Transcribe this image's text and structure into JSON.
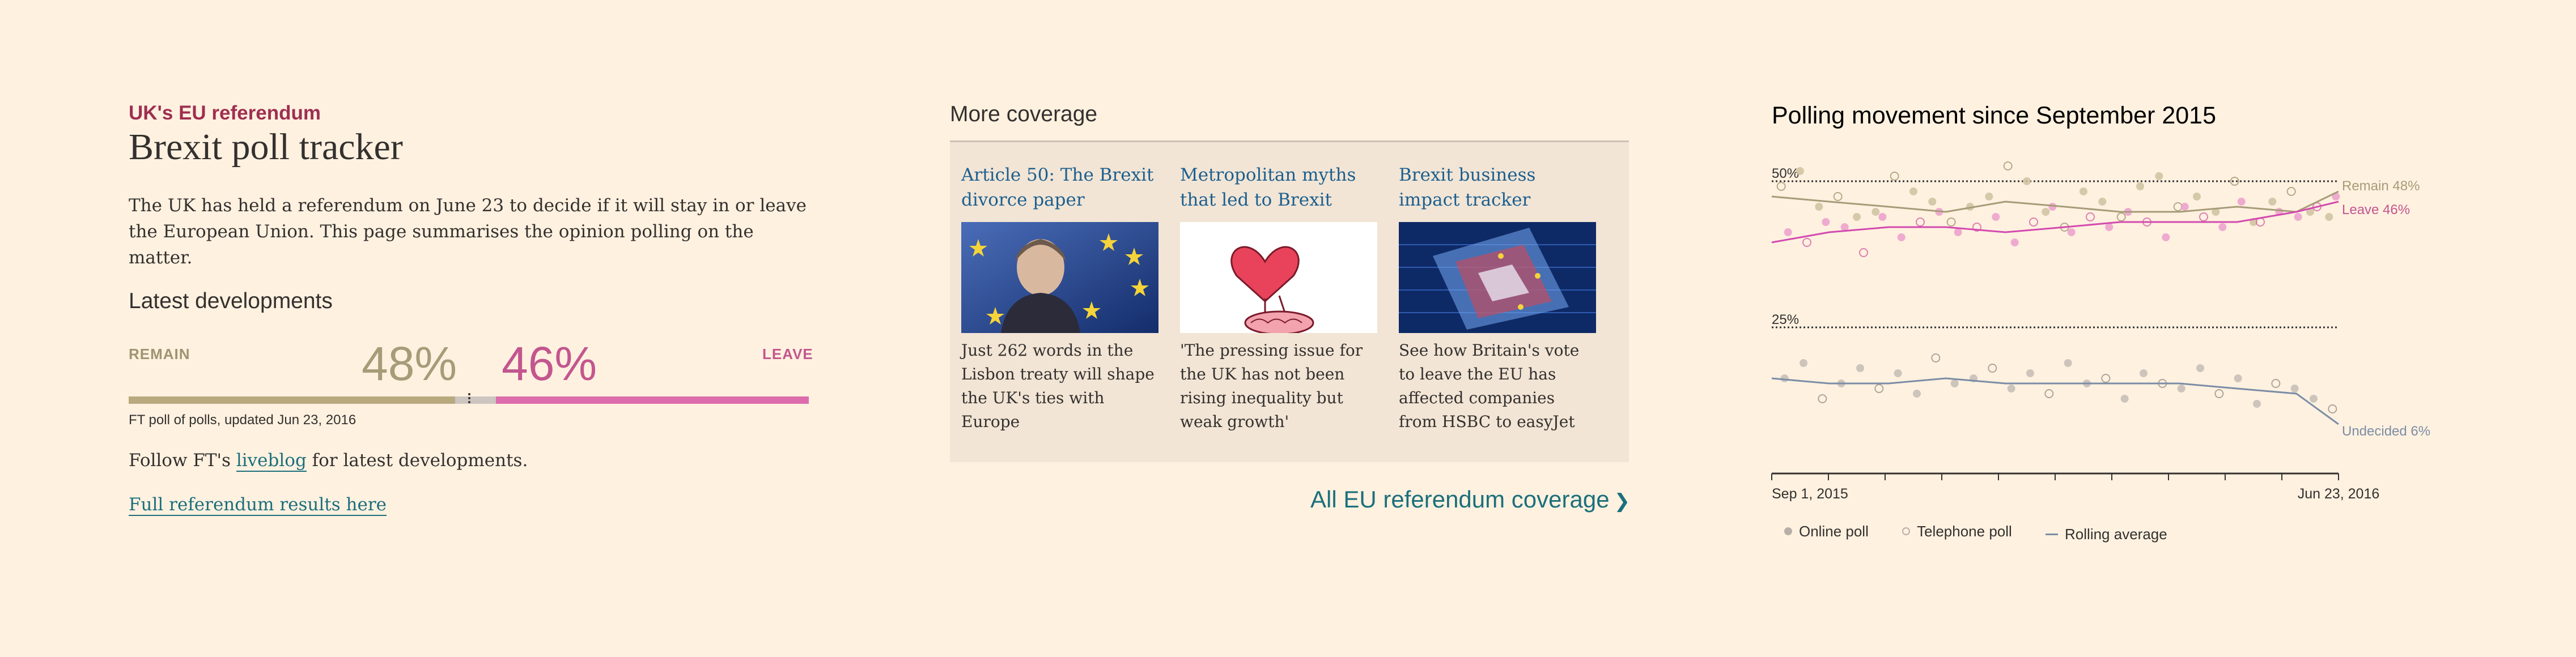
{
  "header": {
    "kicker": "UK's EU referendum",
    "title": "Brexit poll tracker",
    "intro": "The UK has held a referendum on June 23 to decide if it will stay in or leave the European Union. This page summarises the opinion polling on the matter."
  },
  "latest": {
    "heading": "Latest developments",
    "remain_label": "REMAIN",
    "leave_label": "LEAVE",
    "remain_pct_text": "48%",
    "leave_pct_text": "46%",
    "remain_value": 48,
    "leave_value": 46,
    "undecided_value": 6,
    "caption": "FT poll of polls, updated Jun 23, 2016",
    "follow_prefix": "Follow FT's ",
    "follow_link": "liveblog",
    "follow_suffix": " for latest developments.",
    "results_link": "Full referendum results here"
  },
  "coverage": {
    "heading": "More coverage",
    "cards": [
      {
        "title": "Article 50: The Brexit divorce paper",
        "text": "Just 262 words in the Lisbon treaty will shape the UK's ties with Europe",
        "image": "theresa-may-eu-flag-photo"
      },
      {
        "title": "Metropolitan myths that led to Brexit",
        "text": "'The pressing issue for the UK has not been rising inequality but weak growth'",
        "image": "heart-and-brain-illustration"
      },
      {
        "title": "Brexit business impact tracker",
        "text": "See how Britain's vote to leave the EU has affected companies from HSBC to easyJet",
        "image": "eu-flag-market-data-photo"
      }
    ],
    "all_link": "All EU referendum coverage",
    "chevron": "❯"
  },
  "colors": {
    "remain": "#b9a97f",
    "leave": "#dc6cac",
    "undecided": "#7b8da6",
    "link": "#1b6f7c",
    "kicker": "#9e2f50"
  },
  "chart_data": {
    "type": "scatter",
    "title": "Polling movement since September 2015",
    "x_labels": {
      "start": "Sep 1, 2015",
      "end": "Jun 23, 2016"
    },
    "x_range": [
      "2015-09-01",
      "2016-06-23"
    ],
    "reference_lines": [
      {
        "label": "50%",
        "value": 50
      },
      {
        "label": "25%",
        "value": 25
      }
    ],
    "legend": [
      {
        "label": "Online poll",
        "icon": "filled-circle-icon"
      },
      {
        "label": "Telephone poll",
        "icon": "hollow-circle-icon"
      },
      {
        "label": "Rolling average",
        "icon": "line-icon"
      }
    ],
    "end_labels": {
      "remain": "Remain 48%",
      "leave": "Leave 46%",
      "undecided": "Undecided 6%"
    },
    "series": [
      {
        "name": "Remain",
        "x": [
          "2015-09-01",
          "2015-10-01",
          "2015-11-01",
          "2015-12-01",
          "2016-01-01",
          "2016-02-01",
          "2016-03-01",
          "2016-04-01",
          "2016-05-01",
          "2016-06-01",
          "2016-06-23"
        ],
        "values": [
          47,
          46,
          45,
          44,
          46,
          45,
          44,
          44,
          45,
          44,
          48
        ]
      },
      {
        "name": "Leave",
        "x": [
          "2015-09-01",
          "2015-10-01",
          "2015-11-01",
          "2015-12-01",
          "2016-01-01",
          "2016-02-01",
          "2016-03-01",
          "2016-04-01",
          "2016-05-01",
          "2016-06-01",
          "2016-06-23"
        ],
        "values": [
          38,
          40,
          41,
          41,
          40,
          41,
          42,
          42,
          42,
          44,
          46
        ]
      },
      {
        "name": "Undecided",
        "x": [
          "2015-09-01",
          "2015-10-01",
          "2015-11-01",
          "2015-12-01",
          "2016-01-01",
          "2016-02-01",
          "2016-03-01",
          "2016-04-01",
          "2016-05-01",
          "2016-06-01",
          "2016-06-23"
        ],
        "values": [
          15,
          14,
          14,
          15,
          14,
          14,
          14,
          14,
          13,
          12,
          6
        ]
      }
    ],
    "polls": {
      "remain": [
        49,
        52,
        45,
        47,
        43,
        44,
        51,
        48,
        46,
        42,
        45,
        47,
        53,
        50,
        44,
        41,
        48,
        46,
        43,
        49,
        51,
        45,
        47,
        44,
        50,
        42,
        46,
        48,
        44,
        43
      ],
      "leave": [
        40,
        38,
        42,
        41,
        36,
        43,
        39,
        42,
        44,
        40,
        41,
        43,
        38,
        42,
        45,
        40,
        43,
        41,
        44,
        42,
        39,
        45,
        43,
        41,
        46,
        42,
        44,
        43,
        45,
        47
      ],
      "undecided": [
        15,
        18,
        11,
        14,
        17,
        13,
        16,
        12,
        19,
        14,
        15,
        17,
        13,
        16,
        12,
        18,
        14,
        15,
        11,
        16,
        14,
        13,
        17,
        12,
        15,
        10,
        14,
        13,
        11,
        9
      ]
    }
  }
}
